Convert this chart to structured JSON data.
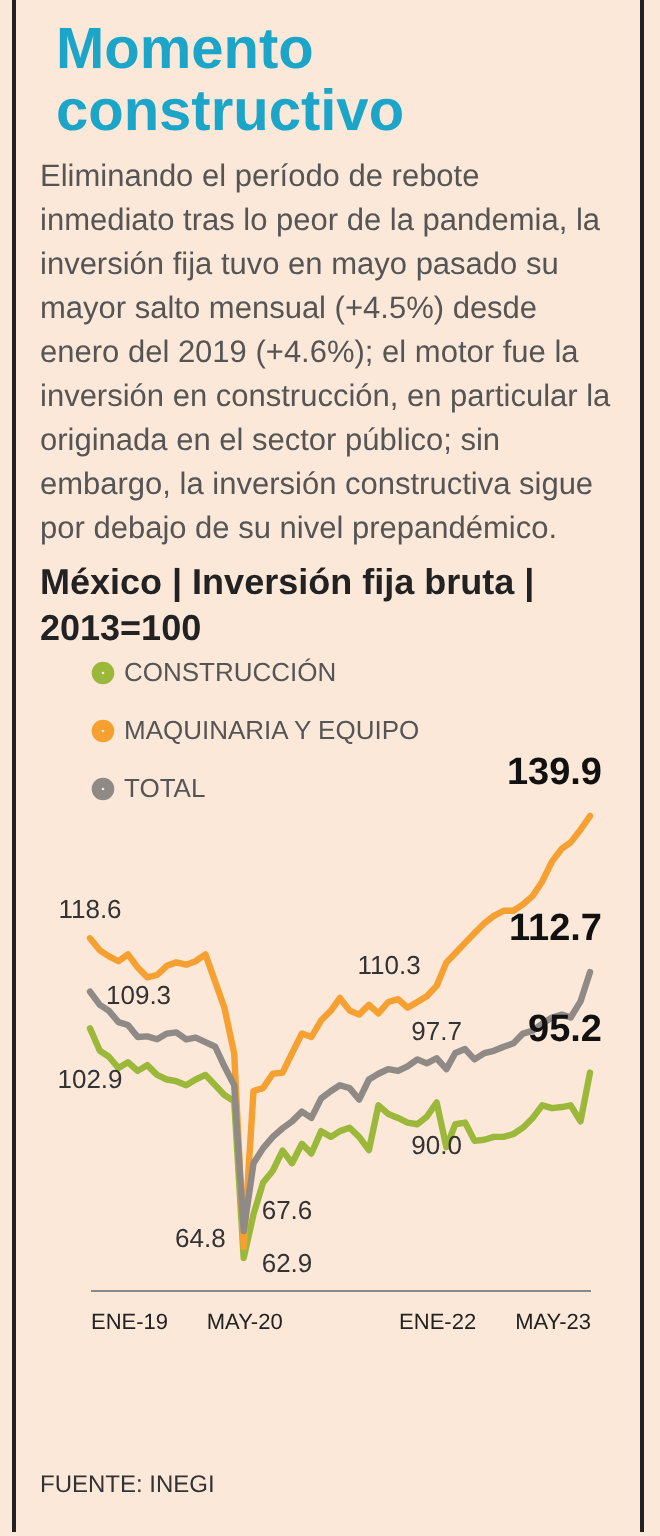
{
  "chart_data": {
    "type": "line",
    "title": "Momento constructivo",
    "subtitle": "Eliminando el período de rebote inmediato tras lo peor de la pandemia, la inversión fija tuvo en mayo pasado su mayor salto mensual (+4.5%) desde enero del 2019 (+4.6%); el motor fue la inversión en construcción, en particular la originada en el sector público; sin embargo, la inversión constructiva sigue por debajo de su nivel prepandémico.",
    "ylabel": "México | Inversión fija bruta | 2013=100",
    "annotations": [
      "FUENTE: INEGI"
    ],
    "x": [
      "2019-01",
      "2019-02",
      "2019-03",
      "2019-04",
      "2019-05",
      "2019-06",
      "2019-07",
      "2019-08",
      "2019-09",
      "2019-10",
      "2019-11",
      "2019-12",
      "2020-01",
      "2020-02",
      "2020-03",
      "2020-04",
      "2020-05",
      "2020-06",
      "2020-07",
      "2020-08",
      "2020-09",
      "2020-10",
      "2020-11",
      "2020-12",
      "2021-01",
      "2021-02",
      "2021-03",
      "2021-04",
      "2021-05",
      "2021-06",
      "2021-07",
      "2021-08",
      "2021-09",
      "2021-10",
      "2021-11",
      "2021-12",
      "2022-01",
      "2022-02",
      "2022-03",
      "2022-04",
      "2022-05",
      "2022-06",
      "2022-07",
      "2022-08",
      "2022-09",
      "2022-10",
      "2022-11",
      "2022-12",
      "2023-01",
      "2023-02",
      "2023-03",
      "2023-04",
      "2023-05"
    ],
    "xlim": [
      "2019-01",
      "2023-05"
    ],
    "xticks": [
      {
        "value": "2019-01",
        "label": "ENE-19"
      },
      {
        "value": "2020-05",
        "label": "MAY-20"
      },
      {
        "value": "2022-01",
        "label": "ENE-22"
      },
      {
        "value": "2023-05",
        "label": "MAY-23"
      }
    ],
    "tick_labels": "x",
    "legend": "top left",
    "series": [
      {
        "name": "CONSTRUCCIÓN",
        "color": "#9bb83a",
        "values": [
          102.9,
          99,
          98,
          96,
          97,
          95.5,
          96.5,
          94.8,
          94,
          93.7,
          93,
          94,
          94.8,
          93,
          91.3,
          90.2,
          62.9,
          70.5,
          76,
          78.1,
          81.6,
          79.4,
          82.8,
          81.1,
          85,
          84,
          85,
          85.6,
          84,
          81.7,
          89.5,
          88,
          87.3,
          86.5,
          86.2,
          87.5,
          90.0,
          82.2,
          86.2,
          86.5,
          83.3,
          83.5,
          84,
          84,
          84.5,
          85.6,
          87.3,
          89.5,
          89,
          89.2,
          89.5,
          86.7,
          95.2
        ],
        "value_labels": [
          "102.9",
          null,
          null,
          null,
          null,
          null,
          null,
          null,
          null,
          null,
          null,
          null,
          null,
          null,
          null,
          null,
          "62.9",
          null,
          null,
          null,
          null,
          null,
          null,
          null,
          null,
          null,
          null,
          null,
          null,
          null,
          null,
          null,
          null,
          null,
          null,
          null,
          "90.0",
          null,
          null,
          null,
          null,
          null,
          null,
          null,
          null,
          null,
          null,
          null,
          null,
          null,
          null,
          null,
          "95.2"
        ]
      },
      {
        "name": "MAQUINARIA Y EQUIPO",
        "color": "#f5a030",
        "values": [
          118.6,
          116.5,
          115.5,
          114.6,
          115.8,
          113.5,
          111.8,
          112.2,
          113.8,
          114.4,
          114,
          114.6,
          115.8,
          111,
          106.5,
          98.5,
          64.8,
          92,
          92.5,
          95,
          95.2,
          98.6,
          102,
          101.4,
          104.3,
          106,
          108.2,
          106,
          105.3,
          107,
          105.5,
          107.5,
          108,
          106.5,
          107.5,
          108.5,
          110.3,
          114.4,
          116,
          117.8,
          119.5,
          121.2,
          122.5,
          123.4,
          123.4,
          124.5,
          126,
          128.5,
          132,
          134.2,
          135.3,
          137.5,
          139.9
        ],
        "value_labels": [
          "118.6",
          null,
          null,
          null,
          null,
          null,
          null,
          null,
          null,
          null,
          null,
          null,
          null,
          null,
          null,
          null,
          "64.8",
          null,
          null,
          null,
          null,
          null,
          null,
          null,
          null,
          null,
          null,
          null,
          null,
          null,
          null,
          null,
          null,
          null,
          null,
          null,
          "110.3",
          null,
          null,
          null,
          null,
          null,
          null,
          null,
          null,
          null,
          null,
          null,
          null,
          null,
          null,
          null,
          "139.9"
        ]
      },
      {
        "name": "TOTAL",
        "color": "#8f8a86",
        "values": [
          109.3,
          107,
          106,
          104,
          103.5,
          101.4,
          101.5,
          101,
          102,
          102.2,
          101,
          101.3,
          100.5,
          99.7,
          96.3,
          93,
          67.6,
          79.4,
          82,
          84,
          85.5,
          86.7,
          88.4,
          87.3,
          90.7,
          92,
          93,
          92.5,
          90.5,
          94,
          95,
          95.8,
          95.5,
          96.3,
          97.5,
          96.8,
          97.7,
          95.8,
          98.6,
          99.3,
          97.5,
          98.6,
          99,
          99.7,
          100.3,
          102,
          102.5,
          103.7,
          104.8,
          105.3,
          104.8,
          107.6,
          112.7
        ],
        "value_labels": [
          "109.3",
          null,
          null,
          null,
          null,
          null,
          null,
          null,
          null,
          null,
          null,
          null,
          null,
          null,
          null,
          null,
          "67.6",
          null,
          null,
          null,
          null,
          null,
          null,
          null,
          null,
          null,
          null,
          null,
          null,
          null,
          null,
          null,
          null,
          null,
          null,
          null,
          "97.7",
          null,
          null,
          null,
          null,
          null,
          null,
          null,
          null,
          null,
          null,
          null,
          null,
          null,
          null,
          null,
          "112.7"
        ]
      }
    ]
  }
}
